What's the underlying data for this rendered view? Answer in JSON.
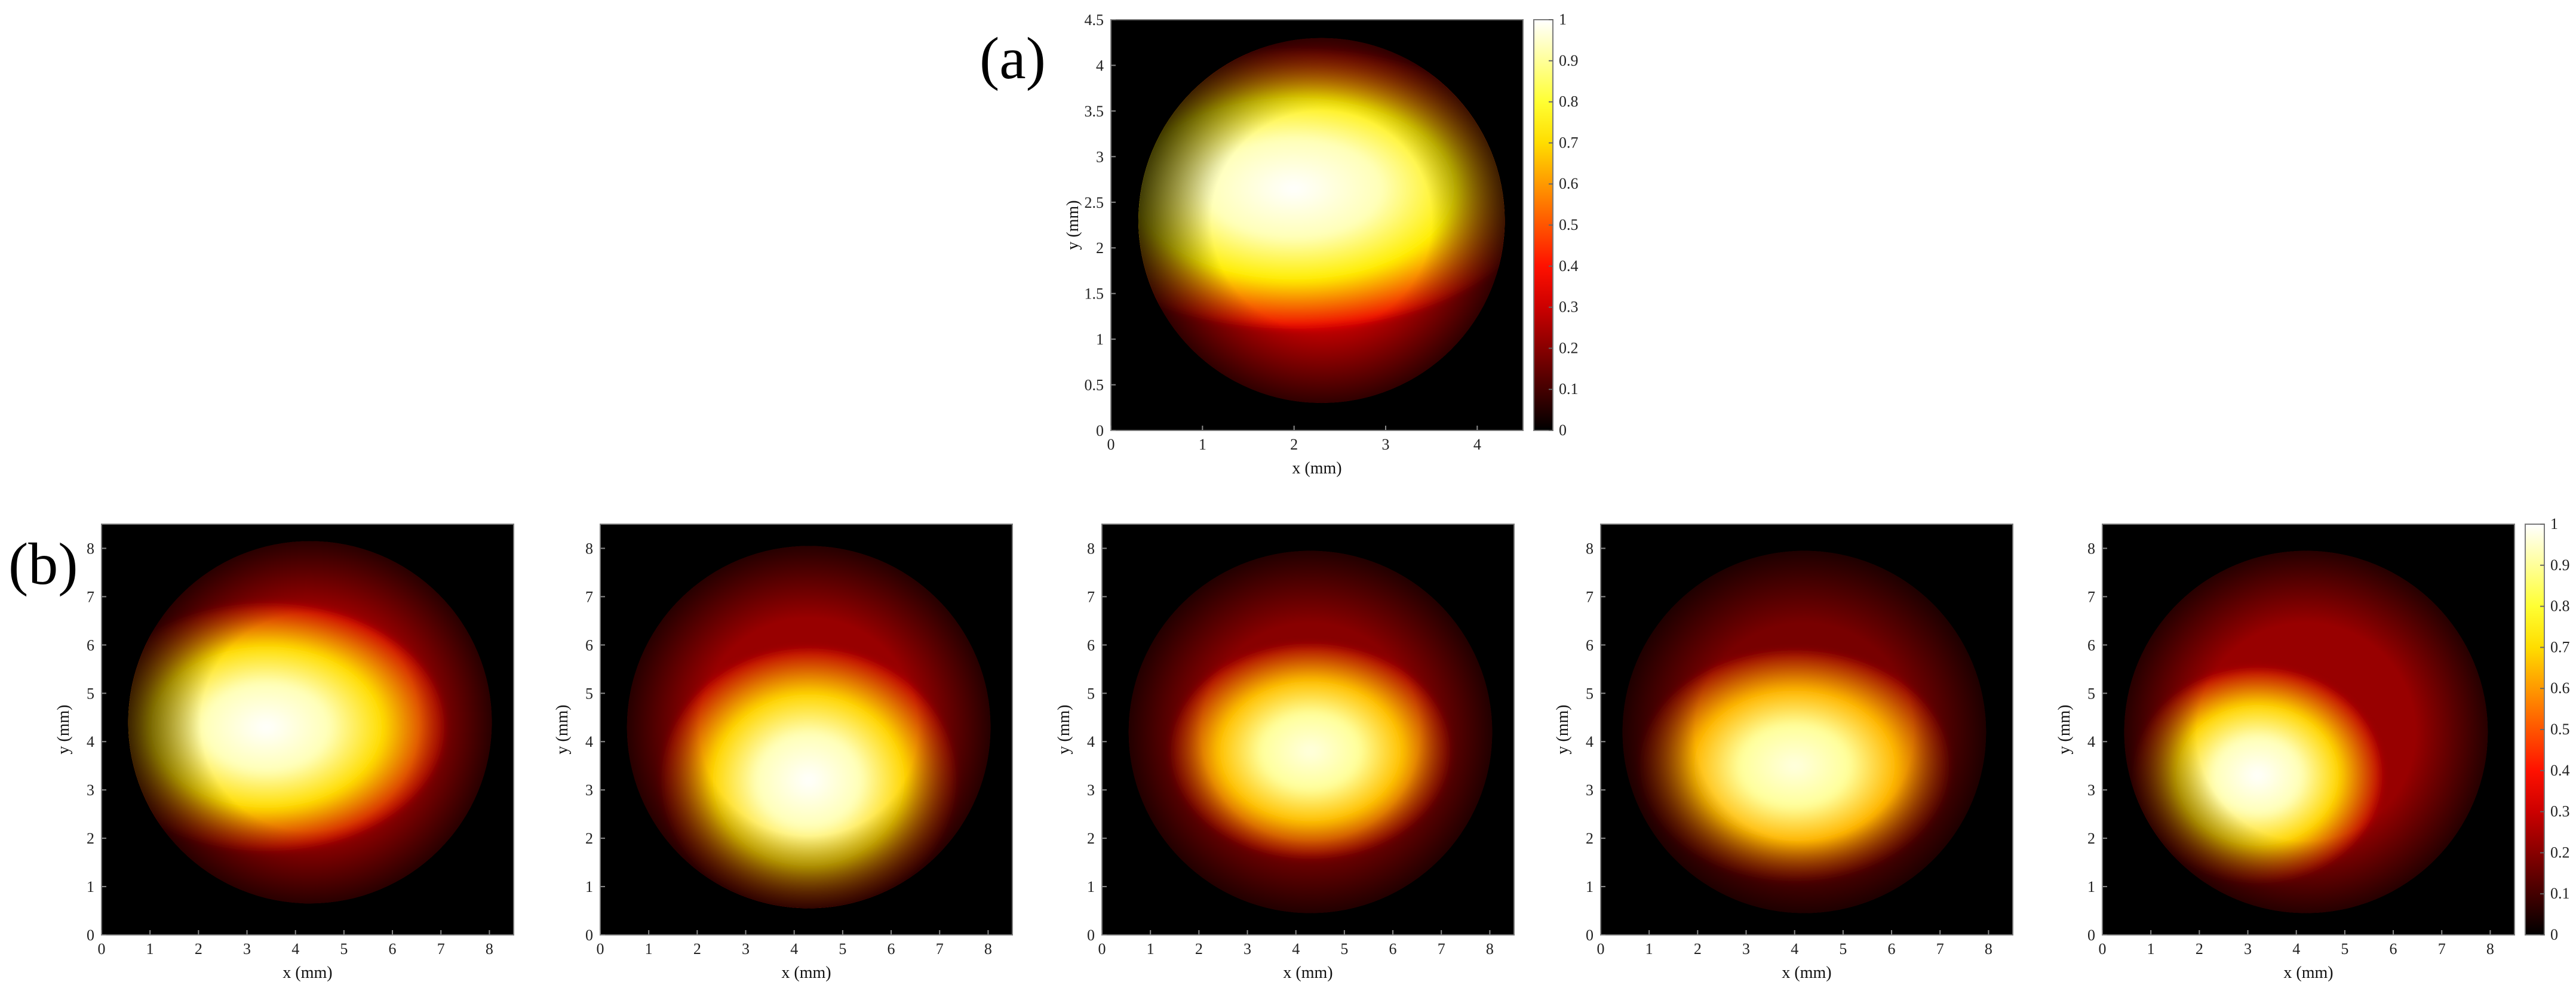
{
  "figure": {
    "labels": {
      "a": "(a)",
      "b": "(b)"
    }
  },
  "colors": {
    "background": "#000000",
    "colormap": "hot",
    "frame": "#7a7a7a"
  },
  "chart_data": [
    {
      "type": "heatmap",
      "panel": "a",
      "xlabel": "x (mm)",
      "ylabel": "y (mm)",
      "xlim": [
        0,
        4.5
      ],
      "ylim": [
        0,
        4.5
      ],
      "xticks": [
        "0",
        "1",
        "2",
        "3",
        "4"
      ],
      "yticks": [
        "0",
        "0.5",
        "1",
        "1.5",
        "2",
        "2.5",
        "3",
        "3.5",
        "4",
        "4.5"
      ],
      "colorbar": {
        "min": 0,
        "max": 1,
        "ticks": [
          "0",
          "0.1",
          "0.2",
          "0.3",
          "0.4",
          "0.5",
          "0.6",
          "0.7",
          "0.8",
          "0.9",
          "1"
        ]
      },
      "aperture": {
        "cx": 2.3,
        "cy": 2.3,
        "r": 2.0
      },
      "hotspot": {
        "cx": 2.0,
        "cy": 2.65,
        "rx": 1.7,
        "ry": 0.9,
        "peak": 1.0
      },
      "background_level": 0.35
    },
    {
      "type": "heatmap",
      "panel": "b1",
      "xlabel": "x (mm)",
      "ylabel": "y (mm)",
      "xlim": [
        0,
        8.5
      ],
      "ylim": [
        0,
        8.5
      ],
      "xticks": [
        "0",
        "1",
        "2",
        "3",
        "4",
        "5",
        "6",
        "7",
        "8"
      ],
      "yticks": [
        "0",
        "1",
        "2",
        "3",
        "4",
        "5",
        "6",
        "7",
        "8"
      ],
      "aperture": {
        "cx": 4.3,
        "cy": 4.4,
        "r": 3.75
      },
      "hotspot": {
        "cx": 3.4,
        "cy": 4.3,
        "rx": 2.3,
        "ry": 1.5,
        "peak": 1.0
      },
      "background_level": 0.3
    },
    {
      "type": "heatmap",
      "panel": "b2",
      "xlabel": "x (mm)",
      "ylabel": "y (mm)",
      "xlim": [
        0,
        8.5
      ],
      "ylim": [
        0,
        8.5
      ],
      "xticks": [
        "0",
        "1",
        "2",
        "3",
        "4",
        "5",
        "6",
        "7",
        "8"
      ],
      "yticks": [
        "0",
        "1",
        "2",
        "3",
        "4",
        "5",
        "6",
        "7",
        "8"
      ],
      "aperture": {
        "cx": 4.3,
        "cy": 4.3,
        "r": 3.75
      },
      "hotspot": {
        "cx": 4.3,
        "cy": 3.2,
        "rx": 1.9,
        "ry": 1.6,
        "peak": 1.0
      },
      "background_level": 0.28
    },
    {
      "type": "heatmap",
      "panel": "b3",
      "xlabel": "x (mm)",
      "ylabel": "y (mm)",
      "xlim": [
        0,
        8.5
      ],
      "ylim": [
        0,
        8.5
      ],
      "xticks": [
        "0",
        "1",
        "2",
        "3",
        "4",
        "5",
        "6",
        "7",
        "8"
      ],
      "yticks": [
        "0",
        "1",
        "2",
        "3",
        "4",
        "5",
        "6",
        "7",
        "8"
      ],
      "aperture": {
        "cx": 4.3,
        "cy": 4.2,
        "r": 3.75
      },
      "hotspot": {
        "cx": 4.3,
        "cy": 3.8,
        "rx": 1.8,
        "ry": 1.3,
        "peak": 0.97
      },
      "background_level": 0.25
    },
    {
      "type": "heatmap",
      "panel": "b4",
      "xlabel": "x (mm)",
      "ylabel": "y (mm)",
      "xlim": [
        0,
        8.5
      ],
      "ylim": [
        0,
        8.5
      ],
      "xticks": [
        "0",
        "1",
        "2",
        "3",
        "4",
        "5",
        "6",
        "7",
        "8"
      ],
      "yticks": [
        "0",
        "1",
        "2",
        "3",
        "4",
        "5",
        "6",
        "7",
        "8"
      ],
      "aperture": {
        "cx": 4.2,
        "cy": 4.2,
        "r": 3.75
      },
      "hotspot": {
        "cx": 4.0,
        "cy": 3.5,
        "rx": 2.0,
        "ry": 1.4,
        "peak": 0.97
      },
      "background_level": 0.22
    },
    {
      "type": "heatmap",
      "panel": "b5",
      "xlabel": "x (mm)",
      "ylabel": "y (mm)",
      "xlim": [
        0,
        8.5
      ],
      "ylim": [
        0,
        8.5
      ],
      "xticks": [
        "0",
        "1",
        "2",
        "3",
        "4",
        "5",
        "6",
        "7",
        "8"
      ],
      "yticks": [
        "0",
        "1",
        "2",
        "3",
        "4",
        "5",
        "6",
        "7",
        "8"
      ],
      "colorbar": {
        "min": 0,
        "max": 1,
        "ticks": [
          "0",
          "0.1",
          "0.2",
          "0.3",
          "0.4",
          "0.5",
          "0.6",
          "0.7",
          "0.8",
          "0.9",
          "1"
        ]
      },
      "aperture": {
        "cx": 4.2,
        "cy": 4.2,
        "r": 3.75
      },
      "hotspot": {
        "cx": 3.2,
        "cy": 3.3,
        "rx": 1.6,
        "ry": 1.3,
        "peak": 1.0
      },
      "background_level": 0.28
    }
  ]
}
